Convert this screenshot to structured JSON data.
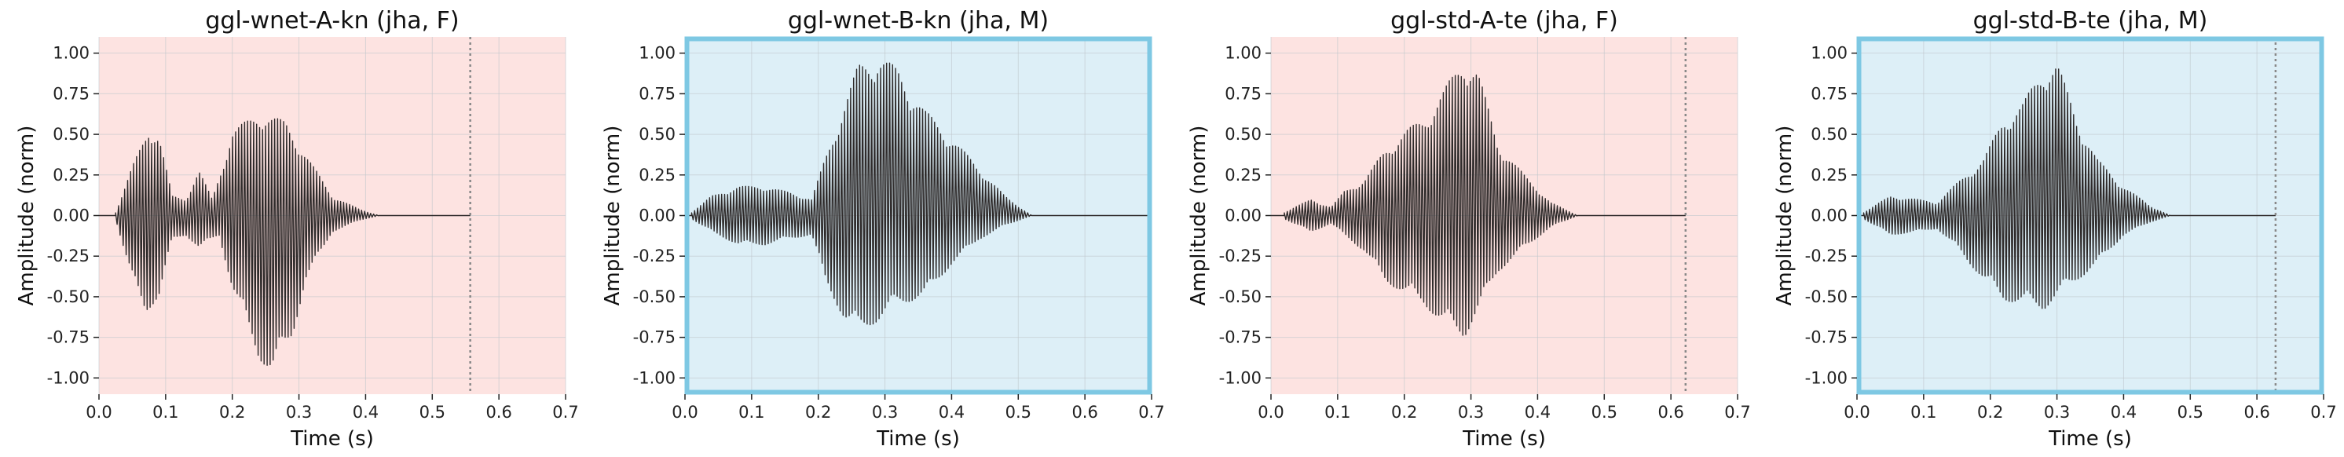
{
  "chart_data": [
    {
      "type": "line",
      "title": "ggl-wnet-A-kn (jha, F)",
      "xlabel": "Time (s)",
      "ylabel": "Amplitude (norm)",
      "xlim": [
        0.0,
        0.7
      ],
      "ylim": [
        -1.1,
        1.1
      ],
      "xticks": [
        "0.0",
        "0.1",
        "0.2",
        "0.3",
        "0.4",
        "0.5",
        "0.6",
        "0.7"
      ],
      "yticks": [
        "1.00",
        "0.75",
        "0.50",
        "0.25",
        "0.00",
        "-0.25",
        "-0.50",
        "-0.75",
        "-1.00"
      ],
      "grid": true,
      "background_color": "#fde3e1",
      "highlight_border": false,
      "marker_line_x": 0.557,
      "waveform": {
        "start": 0.025,
        "end": 0.42,
        "envelope_pos": [
          [
            0.025,
            0.02
          ],
          [
            0.05,
            0.3
          ],
          [
            0.075,
            0.55
          ],
          [
            0.09,
            0.5
          ],
          [
            0.11,
            0.12
          ],
          [
            0.13,
            0.1
          ],
          [
            0.15,
            0.28
          ],
          [
            0.17,
            0.1
          ],
          [
            0.2,
            0.52
          ],
          [
            0.24,
            0.64
          ],
          [
            0.28,
            0.58
          ],
          [
            0.31,
            0.38
          ],
          [
            0.35,
            0.12
          ],
          [
            0.39,
            0.04
          ],
          [
            0.42,
            0.0
          ]
        ],
        "envelope_neg": [
          [
            0.025,
            -0.02
          ],
          [
            0.05,
            -0.4
          ],
          [
            0.07,
            -0.6
          ],
          [
            0.09,
            -0.5
          ],
          [
            0.11,
            -0.15
          ],
          [
            0.13,
            -0.12
          ],
          [
            0.15,
            -0.2
          ],
          [
            0.18,
            -0.12
          ],
          [
            0.2,
            -0.45
          ],
          [
            0.24,
            -0.88
          ],
          [
            0.26,
            -0.98
          ],
          [
            0.29,
            -0.75
          ],
          [
            0.31,
            -0.4
          ],
          [
            0.35,
            -0.1
          ],
          [
            0.39,
            -0.03
          ],
          [
            0.42,
            0.0
          ]
        ]
      }
    },
    {
      "type": "line",
      "title": "ggl-wnet-B-kn (jha, M)",
      "xlabel": "Time (s)",
      "ylabel": "Amplitude (norm)",
      "xlim": [
        0.0,
        0.7
      ],
      "ylim": [
        -1.1,
        1.1
      ],
      "xticks": [
        "0.0",
        "0.1",
        "0.2",
        "0.3",
        "0.4",
        "0.5",
        "0.6",
        "0.7"
      ],
      "yticks": [
        "1.00",
        "0.75",
        "0.50",
        "0.25",
        "0.00",
        "-0.25",
        "-0.50",
        "-0.75",
        "-1.00"
      ],
      "grid": true,
      "background_color": "#ddeff7",
      "highlight_border": true,
      "marker_line_x": null,
      "waveform": {
        "start": 0.01,
        "end": 0.52,
        "envelope_pos": [
          [
            0.01,
            0.02
          ],
          [
            0.04,
            0.12
          ],
          [
            0.08,
            0.18
          ],
          [
            0.12,
            0.18
          ],
          [
            0.16,
            0.14
          ],
          [
            0.19,
            0.1
          ],
          [
            0.21,
            0.35
          ],
          [
            0.24,
            0.7
          ],
          [
            0.26,
            0.93
          ],
          [
            0.29,
            1.0
          ],
          [
            0.32,
            0.9
          ],
          [
            0.36,
            0.65
          ],
          [
            0.4,
            0.48
          ],
          [
            0.44,
            0.3
          ],
          [
            0.48,
            0.12
          ],
          [
            0.52,
            0.0
          ]
        ],
        "envelope_neg": [
          [
            0.01,
            -0.02
          ],
          [
            0.04,
            -0.1
          ],
          [
            0.08,
            -0.18
          ],
          [
            0.12,
            -0.18
          ],
          [
            0.16,
            -0.14
          ],
          [
            0.19,
            -0.12
          ],
          [
            0.21,
            -0.4
          ],
          [
            0.24,
            -0.65
          ],
          [
            0.26,
            -0.72
          ],
          [
            0.29,
            -0.65
          ],
          [
            0.32,
            -0.55
          ],
          [
            0.36,
            -0.5
          ],
          [
            0.4,
            -0.3
          ],
          [
            0.44,
            -0.15
          ],
          [
            0.48,
            -0.06
          ],
          [
            0.52,
            0.0
          ]
        ]
      }
    },
    {
      "type": "line",
      "title": "ggl-std-A-te (jha, F)",
      "xlabel": "Time (s)",
      "ylabel": "Amplitude (norm)",
      "xlim": [
        0.0,
        0.7
      ],
      "ylim": [
        -1.1,
        1.1
      ],
      "xticks": [
        "0.0",
        "0.1",
        "0.2",
        "0.3",
        "0.4",
        "0.5",
        "0.6",
        "0.7"
      ],
      "yticks": [
        "1.00",
        "0.75",
        "0.50",
        "0.25",
        "0.00",
        "-0.25",
        "-0.50",
        "-0.75",
        "-1.00"
      ],
      "grid": true,
      "background_color": "#fde3e1",
      "highlight_border": false,
      "marker_line_x": 0.622,
      "waveform": {
        "start": 0.02,
        "end": 0.46,
        "envelope_pos": [
          [
            0.02,
            0.02
          ],
          [
            0.06,
            0.1
          ],
          [
            0.09,
            0.05
          ],
          [
            0.11,
            0.15
          ],
          [
            0.14,
            0.22
          ],
          [
            0.17,
            0.4
          ],
          [
            0.2,
            0.52
          ],
          [
            0.23,
            0.6
          ],
          [
            0.26,
            0.78
          ],
          [
            0.29,
            0.98
          ],
          [
            0.31,
            0.9
          ],
          [
            0.34,
            0.45
          ],
          [
            0.38,
            0.25
          ],
          [
            0.42,
            0.08
          ],
          [
            0.46,
            0.0
          ]
        ],
        "envelope_neg": [
          [
            0.02,
            -0.02
          ],
          [
            0.06,
            -0.1
          ],
          [
            0.09,
            -0.05
          ],
          [
            0.11,
            -0.12
          ],
          [
            0.14,
            -0.22
          ],
          [
            0.17,
            -0.4
          ],
          [
            0.2,
            -0.48
          ],
          [
            0.23,
            -0.55
          ],
          [
            0.26,
            -0.68
          ],
          [
            0.29,
            -0.75
          ],
          [
            0.31,
            -0.6
          ],
          [
            0.34,
            -0.35
          ],
          [
            0.38,
            -0.2
          ],
          [
            0.42,
            -0.07
          ],
          [
            0.46,
            0.0
          ]
        ]
      }
    },
    {
      "type": "line",
      "title": "ggl-std-B-te (jha, M)",
      "xlabel": "Time (s)",
      "ylabel": "Amplitude (norm)",
      "xlim": [
        0.0,
        0.7
      ],
      "ylim": [
        -1.1,
        1.1
      ],
      "xticks": [
        "0.0",
        "0.1",
        "0.2",
        "0.3",
        "0.4",
        "0.5",
        "0.6",
        "0.7"
      ],
      "yticks": [
        "1.00",
        "0.75",
        "0.50",
        "0.25",
        "0.00",
        "-0.25",
        "-0.50",
        "-0.75",
        "-1.00"
      ],
      "grid": true,
      "background_color": "#ddeff7",
      "highlight_border": true,
      "marker_line_x": 0.628,
      "waveform": {
        "start": 0.01,
        "end": 0.47,
        "envelope_pos": [
          [
            0.01,
            0.02
          ],
          [
            0.05,
            0.12
          ],
          [
            0.09,
            0.1
          ],
          [
            0.12,
            0.08
          ],
          [
            0.15,
            0.2
          ],
          [
            0.19,
            0.35
          ],
          [
            0.22,
            0.6
          ],
          [
            0.25,
            0.7
          ],
          [
            0.28,
            0.92
          ],
          [
            0.3,
            0.95
          ],
          [
            0.33,
            0.6
          ],
          [
            0.36,
            0.35
          ],
          [
            0.4,
            0.18
          ],
          [
            0.44,
            0.06
          ],
          [
            0.47,
            0.0
          ]
        ],
        "envelope_neg": [
          [
            0.01,
            -0.02
          ],
          [
            0.05,
            -0.12
          ],
          [
            0.09,
            -0.1
          ],
          [
            0.12,
            -0.08
          ],
          [
            0.15,
            -0.2
          ],
          [
            0.19,
            -0.4
          ],
          [
            0.22,
            -0.52
          ],
          [
            0.25,
            -0.55
          ],
          [
            0.28,
            -0.58
          ],
          [
            0.3,
            -0.5
          ],
          [
            0.33,
            -0.4
          ],
          [
            0.36,
            -0.3
          ],
          [
            0.4,
            -0.12
          ],
          [
            0.44,
            -0.04
          ],
          [
            0.47,
            0.0
          ]
        ]
      }
    }
  ],
  "colors": {
    "waveform": "#2e2a2a",
    "grid": "#bfc7cc",
    "marker_line": "#888888",
    "axis": "#222222",
    "highlight_border": "#7ec8e3"
  }
}
